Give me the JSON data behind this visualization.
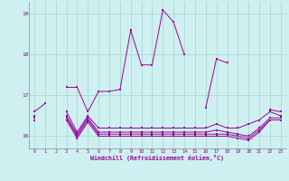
{
  "xlabel": "Windchill (Refroidissement éolien,°C)",
  "bg_color": "#cff0f0",
  "grid_color": "#a8d8d8",
  "line_color": "#990099",
  "x_hours": [
    0,
    1,
    2,
    3,
    4,
    5,
    6,
    7,
    8,
    9,
    10,
    11,
    12,
    13,
    14,
    15,
    16,
    17,
    18,
    19,
    20,
    21,
    22,
    23
  ],
  "series1": [
    16.6,
    16.8,
    null,
    17.2,
    17.2,
    16.6,
    17.1,
    17.1,
    17.15,
    18.6,
    17.75,
    17.75,
    19.1,
    18.8,
    18.0,
    null,
    16.7,
    17.9,
    17.8,
    null,
    null,
    null,
    16.65,
    16.6
  ],
  "series2": [
    16.5,
    null,
    null,
    16.6,
    16.1,
    16.5,
    16.2,
    16.2,
    16.2,
    16.2,
    16.2,
    16.2,
    16.2,
    16.2,
    16.2,
    16.2,
    16.2,
    16.3,
    16.2,
    16.2,
    16.3,
    16.4,
    16.6,
    16.5
  ],
  "series3": [
    16.5,
    null,
    null,
    16.5,
    16.05,
    16.45,
    16.1,
    16.1,
    16.1,
    16.1,
    16.1,
    16.1,
    16.1,
    16.1,
    16.1,
    16.1,
    16.1,
    16.15,
    16.1,
    16.05,
    16.0,
    16.2,
    16.45,
    16.45
  ],
  "series4": [
    16.45,
    null,
    null,
    16.45,
    16.0,
    16.4,
    16.05,
    16.05,
    16.05,
    16.05,
    16.05,
    16.05,
    16.05,
    16.05,
    16.05,
    16.05,
    16.05,
    16.05,
    16.05,
    16.0,
    15.95,
    16.15,
    16.4,
    16.4
  ],
  "series5": [
    16.4,
    null,
    null,
    16.4,
    15.95,
    16.35,
    16.0,
    16.0,
    16.0,
    16.0,
    16.0,
    16.0,
    16.0,
    16.0,
    16.0,
    16.0,
    16.0,
    16.0,
    16.0,
    15.95,
    15.9,
    16.1,
    16.4,
    16.4
  ],
  "ylim": [
    15.7,
    19.3
  ],
  "yticks": [
    16,
    17,
    18,
    19
  ],
  "xlim": [
    -0.5,
    23.5
  ]
}
